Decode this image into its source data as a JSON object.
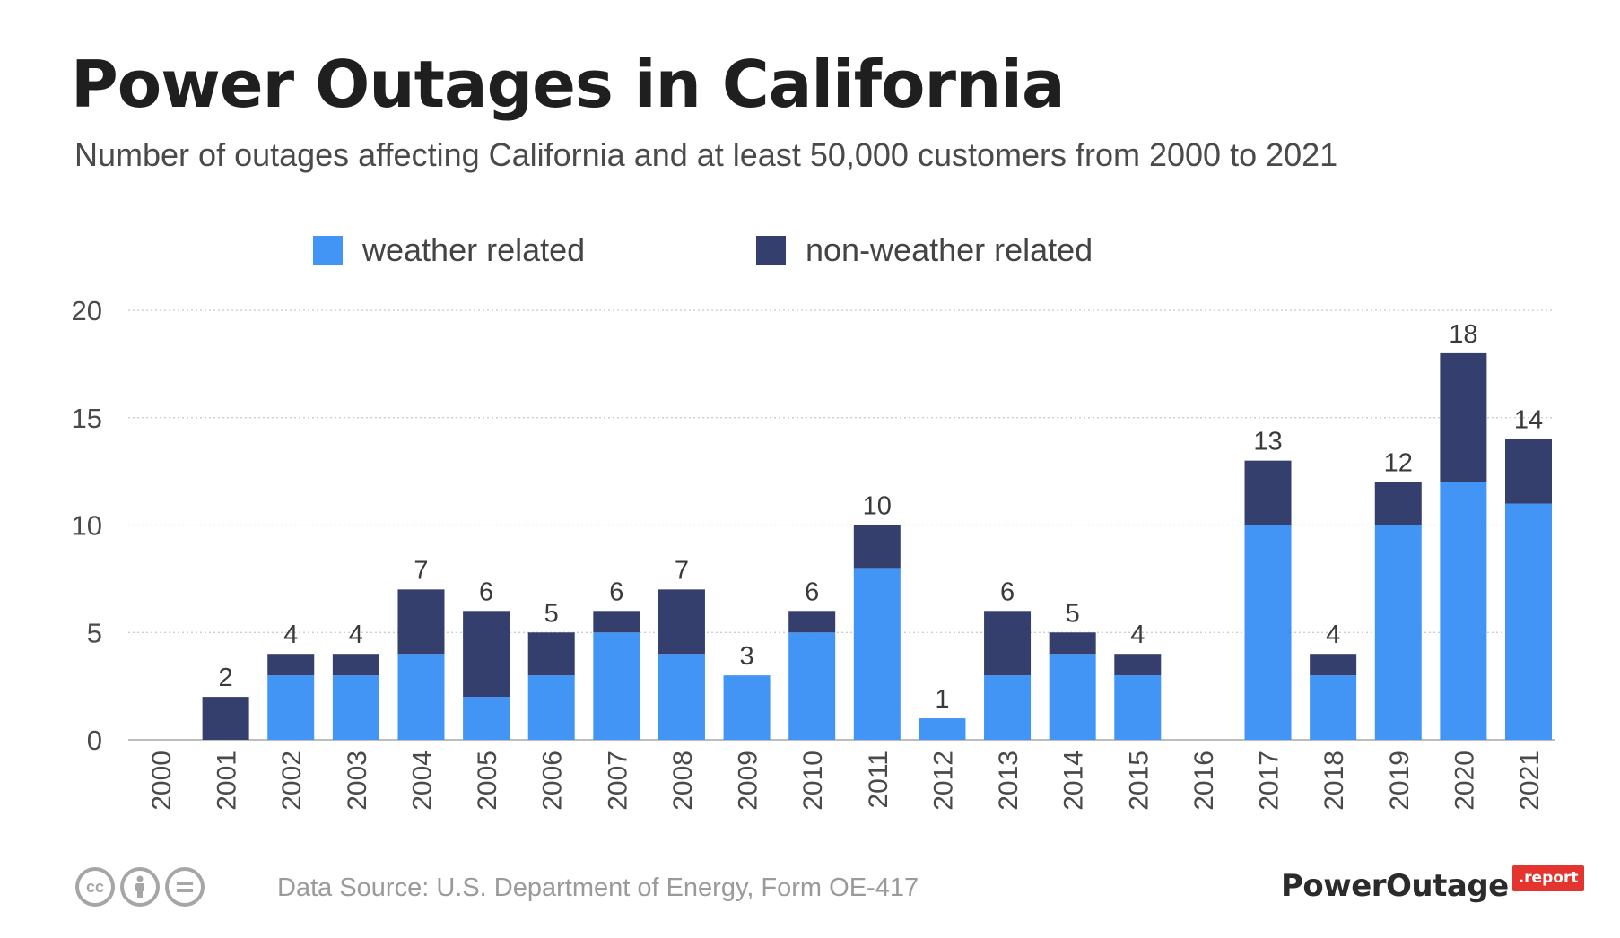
{
  "title": "Power Outages in California",
  "subtitle": "Number of outages affecting California and at least 50,000 customers from 2000 to 2021",
  "colors": {
    "weather": "#4294f5",
    "non_weather": "#353f6e",
    "grid": "#c8c8c8",
    "axis_text": "#4a4a4a",
    "footer_text": "#9a9a9a",
    "brand_red": "#e3342f"
  },
  "legend": {
    "weather_label": "weather related",
    "non_weather_label": "non-weather related"
  },
  "chart_data": {
    "type": "bar",
    "stacked": true,
    "categories": [
      "2000",
      "2001",
      "2002",
      "2003",
      "2004",
      "2005",
      "2006",
      "2007",
      "2008",
      "2009",
      "2010",
      "2011",
      "2012",
      "2013",
      "2014",
      "2015",
      "2016",
      "2017",
      "2018",
      "2019",
      "2020",
      "2021"
    ],
    "series": [
      {
        "name": "weather related",
        "values": [
          0,
          0,
          3,
          3,
          4,
          2,
          3,
          5,
          4,
          3,
          5,
          8,
          1,
          3,
          4,
          3,
          0,
          10,
          3,
          10,
          12,
          11
        ]
      },
      {
        "name": "non-weather related",
        "values": [
          0,
          2,
          1,
          1,
          3,
          4,
          2,
          1,
          3,
          0,
          1,
          2,
          0,
          3,
          1,
          1,
          0,
          3,
          1,
          2,
          6,
          3
        ]
      }
    ],
    "totals": [
      "",
      "2",
      "4",
      "4",
      "7",
      "6",
      "5",
      "6",
      "7",
      "3",
      "6",
      "10",
      "1",
      "6",
      "5",
      "4",
      "",
      "13",
      "4",
      "12",
      "18",
      "14"
    ],
    "yticks": [
      "0",
      "5",
      "10",
      "15",
      "20"
    ],
    "ylim": [
      0,
      20
    ],
    "grid": true,
    "legend_position": "top"
  },
  "footer": {
    "source": "Data Source: U.S. Department of Energy, Form OE-417",
    "license_icons": [
      "cc-icon",
      "attribution-icon",
      "no-derivatives-icon"
    ],
    "brand": {
      "name": "PowerOutage",
      "tag": ".report"
    }
  }
}
